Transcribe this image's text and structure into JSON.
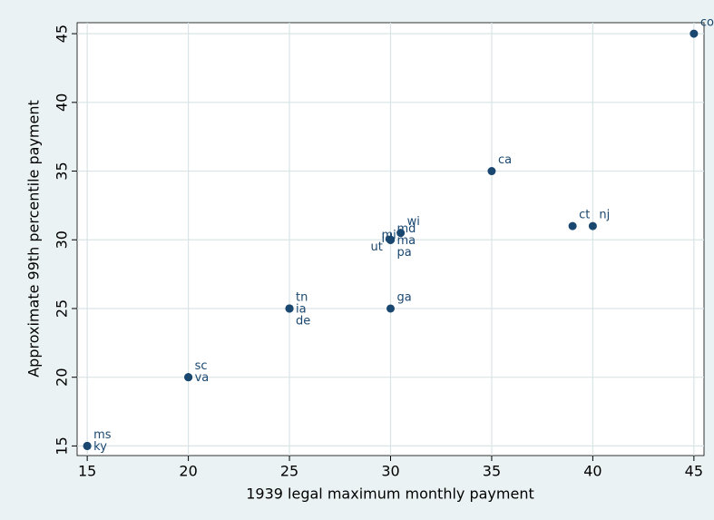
{
  "chart_data": {
    "type": "scatter",
    "xlabel": "1939 legal maximum monthly payment",
    "ylabel": "Approximate 99th percentile payment",
    "color": "#1a476f",
    "label_color": "#1a476f",
    "grid": true,
    "xlim": [
      14.5,
      45.5
    ],
    "xticks": [
      15,
      20,
      25,
      30,
      35,
      40,
      45
    ],
    "ylim": [
      14.3,
      45.8
    ],
    "yticks": [
      15,
      20,
      25,
      30,
      35,
      40,
      45
    ],
    "x": [
      15,
      15,
      20,
      20,
      25,
      25,
      25,
      30,
      35,
      39,
      40,
      45,
      30.5,
      30,
      30,
      30,
      30,
      30,
      30
    ],
    "y": [
      15,
      15,
      20,
      20,
      25,
      25,
      25,
      25,
      35,
      31,
      31,
      45,
      30.5,
      30,
      30,
      30,
      30,
      30,
      30
    ],
    "labels": [
      "ms",
      "ky",
      "sc",
      "va",
      "tn",
      "ia",
      "de",
      "ga",
      "ca",
      "ct",
      "nj",
      "co",
      "wi",
      "md",
      "ma",
      "pa",
      "mi",
      "ut",
      "id"
    ]
  }
}
